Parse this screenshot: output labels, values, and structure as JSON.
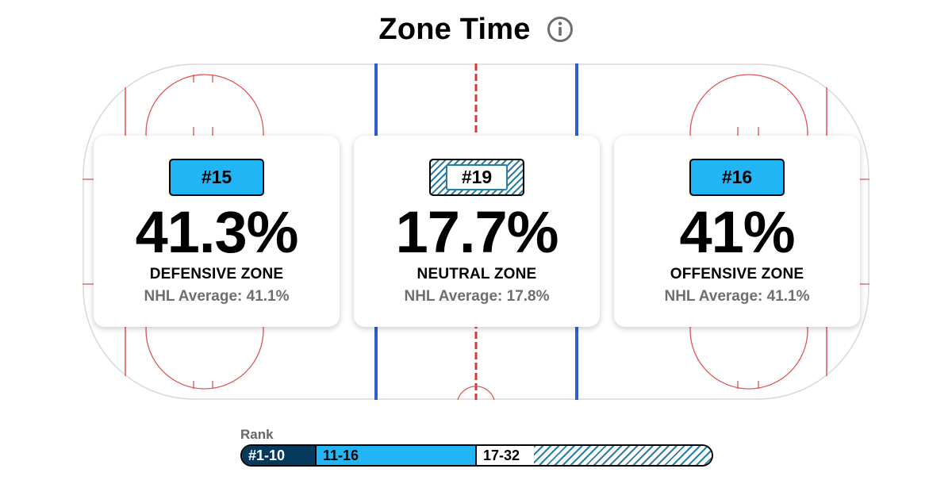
{
  "header": {
    "title": "Zone Time",
    "info_icon": "info-circle-icon"
  },
  "zones": [
    {
      "rank": "#15",
      "value": "41.3%",
      "label": "DEFENSIVE ZONE",
      "average": "NHL Average: 41.1%",
      "tier": "11-16"
    },
    {
      "rank": "#19",
      "value": "17.7%",
      "label": "NEUTRAL ZONE",
      "average": "NHL Average: 17.8%",
      "tier": "17-32"
    },
    {
      "rank": "#16",
      "value": "41%",
      "label": "OFFENSIVE ZONE",
      "average": "NHL Average: 41.1%",
      "tier": "11-16"
    }
  ],
  "legend": {
    "label": "Rank",
    "tiers": [
      "#1-10",
      "11-16",
      "17-32"
    ]
  },
  "colors": {
    "tier_1_10": "#053a5c",
    "tier_11_16": "#22b5f5",
    "tier_17_32_hatch": "#2a7fa0",
    "blue_line": "#2f5fcf",
    "red_line": "#d23a3a"
  }
}
